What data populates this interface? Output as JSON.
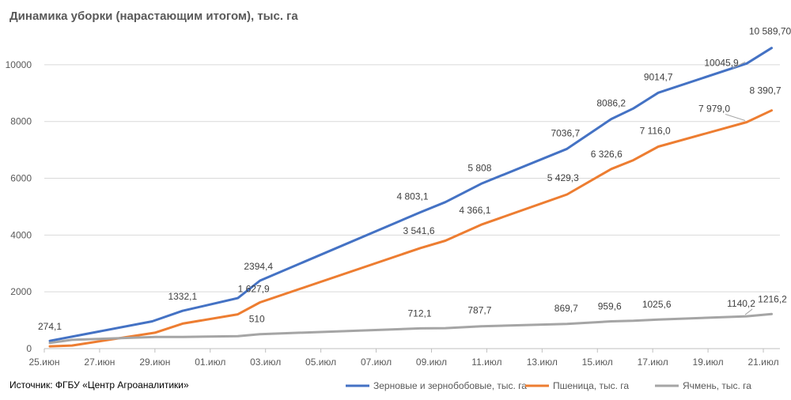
{
  "title": "Динамика уборки (нарастающим итогом), тыс. га",
  "source": "Источник: ФГБУ «Центр Агроаналитики»",
  "chart_data": {
    "type": "line",
    "title": "Динамика уборки (нарастающим итогом), тыс. га",
    "xlabel": "",
    "ylabel": "",
    "ylim": [
      0,
      11000
    ],
    "x_range": [
      0,
      26.6
    ],
    "grid": true,
    "legend_position": "bottom-right",
    "x_ticks": [
      {
        "x": 0,
        "label": "25.июн"
      },
      {
        "x": 2,
        "label": "27.июн"
      },
      {
        "x": 4,
        "label": "29.июн"
      },
      {
        "x": 6,
        "label": "01.июл"
      },
      {
        "x": 8,
        "label": "03.июл"
      },
      {
        "x": 10,
        "label": "05.июл"
      },
      {
        "x": 12,
        "label": "07.июл"
      },
      {
        "x": 14,
        "label": "09.июл"
      },
      {
        "x": 16,
        "label": "11.июл"
      },
      {
        "x": 18,
        "label": "13.июл"
      },
      {
        "x": 20,
        "label": "15.июл"
      },
      {
        "x": 22,
        "label": "17.июл"
      },
      {
        "x": 24,
        "label": "19.июл"
      },
      {
        "x": 26,
        "label": "21.июл"
      }
    ],
    "y_ticks": [
      0,
      2000,
      4000,
      6000,
      8000,
      10000
    ],
    "series": [
      {
        "name": "Зерновые и зернобобовые, тыс. га",
        "color": "#4472C4",
        "points": [
          {
            "x": 0.2,
            "y": 274.1
          },
          {
            "x": 3.9,
            "y": 960
          },
          {
            "x": 5.0,
            "y": 1332.1
          },
          {
            "x": 7.0,
            "y": 1780
          },
          {
            "x": 7.8,
            "y": 2394.4
          },
          {
            "x": 13.6,
            "y": 4803.1
          },
          {
            "x": 14.5,
            "y": 5160
          },
          {
            "x": 15.8,
            "y": 5808
          },
          {
            "x": 18.9,
            "y": 7036.7
          },
          {
            "x": 20.5,
            "y": 8086.2
          },
          {
            "x": 21.3,
            "y": 8460
          },
          {
            "x": 22.2,
            "y": 9014.7
          },
          {
            "x": 25.4,
            "y": 10045.9
          },
          {
            "x": 26.3,
            "y": 10589.7
          }
        ]
      },
      {
        "name": "Пшеница, тыс. га",
        "color": "#ED7D31",
        "points": [
          {
            "x": 0.2,
            "y": 80
          },
          {
            "x": 1.0,
            "y": 110
          },
          {
            "x": 4.0,
            "y": 560
          },
          {
            "x": 5.0,
            "y": 880
          },
          {
            "x": 7.0,
            "y": 1210
          },
          {
            "x": 7.8,
            "y": 1627.9
          },
          {
            "x": 13.6,
            "y": 3541.6
          },
          {
            "x": 14.5,
            "y": 3800
          },
          {
            "x": 15.8,
            "y": 4366.1
          },
          {
            "x": 18.9,
            "y": 5429.3
          },
          {
            "x": 20.5,
            "y": 6326.6
          },
          {
            "x": 21.3,
            "y": 6640
          },
          {
            "x": 22.2,
            "y": 7116.0
          },
          {
            "x": 25.4,
            "y": 7979.0
          },
          {
            "x": 26.3,
            "y": 8390.7
          }
        ]
      },
      {
        "name": "Ячмень, тыс. га",
        "color": "#A5A5A5",
        "points": [
          {
            "x": 0.2,
            "y": 200
          },
          {
            "x": 1.0,
            "y": 310
          },
          {
            "x": 4.0,
            "y": 410
          },
          {
            "x": 5.0,
            "y": 410
          },
          {
            "x": 7.0,
            "y": 440
          },
          {
            "x": 7.8,
            "y": 510
          },
          {
            "x": 13.6,
            "y": 712.1
          },
          {
            "x": 14.5,
            "y": 720
          },
          {
            "x": 15.8,
            "y": 787.7
          },
          {
            "x": 18.9,
            "y": 869.7
          },
          {
            "x": 20.5,
            "y": 959.6
          },
          {
            "x": 21.3,
            "y": 980
          },
          {
            "x": 22.2,
            "y": 1025.6
          },
          {
            "x": 25.4,
            "y": 1140.2
          },
          {
            "x": 26.3,
            "y": 1216.2
          }
        ]
      }
    ],
    "data_labels": [
      {
        "series": 0,
        "point": 0,
        "text": "274,1"
      },
      {
        "series": 0,
        "point": 2,
        "text": "1332,1"
      },
      {
        "series": 0,
        "point": 4,
        "text": "2394,4"
      },
      {
        "series": 0,
        "point": 5,
        "text": "4 803,1"
      },
      {
        "series": 0,
        "point": 7,
        "text": "5 808"
      },
      {
        "series": 0,
        "point": 8,
        "text": "7036,7"
      },
      {
        "series": 0,
        "point": 9,
        "text": "8086,2"
      },
      {
        "series": 0,
        "point": 11,
        "text": "9014,7"
      },
      {
        "series": 0,
        "point": 12,
        "text": "10045,9"
      },
      {
        "series": 0,
        "point": 13,
        "text": "10 589,70"
      },
      {
        "series": 1,
        "point": 5,
        "text": "1 627,9"
      },
      {
        "series": 1,
        "point": 6,
        "text": "3 541,6"
      },
      {
        "series": 1,
        "point": 8,
        "text": "4 366,1"
      },
      {
        "series": 1,
        "point": 9,
        "text": "5 429,3"
      },
      {
        "series": 1,
        "point": 10,
        "text": "6 326,6"
      },
      {
        "series": 1,
        "point": 12,
        "text": "7 116,0"
      },
      {
        "series": 1,
        "point": 13,
        "text": "7 979,0"
      },
      {
        "series": 1,
        "point": 14,
        "text": "8 390,7"
      },
      {
        "series": 2,
        "point": 5,
        "text": "510"
      },
      {
        "series": 2,
        "point": 6,
        "text": "712,1"
      },
      {
        "series": 2,
        "point": 8,
        "text": "787,7"
      },
      {
        "series": 2,
        "point": 9,
        "text": "869,7"
      },
      {
        "series": 2,
        "point": 10,
        "text": "959,6"
      },
      {
        "series": 2,
        "point": 12,
        "text": "1025,6"
      },
      {
        "series": 2,
        "point": 13,
        "text": "1140,2"
      },
      {
        "series": 2,
        "point": 14,
        "text": "1216,2"
      }
    ]
  }
}
